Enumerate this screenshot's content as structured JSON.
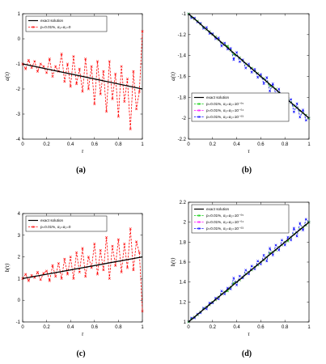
{
  "chart_data": [
    {
      "id": "a",
      "type": "line",
      "caption": "(a)",
      "xlabel": "τ",
      "ylabel": "a(τ)",
      "xlim": [
        0,
        1
      ],
      "ylim": [
        -4,
        1
      ],
      "xticks": [
        "0",
        "0.2",
        "0.4",
        "0.6",
        "0.8",
        "1"
      ],
      "yticks": [
        "1",
        "0",
        "-1",
        "-2",
        "-3",
        "-4"
      ],
      "legend_position": "top-left",
      "series": [
        {
          "name": "exact solution",
          "color": "#000000",
          "style": "solid",
          "x": [
            0,
            1
          ],
          "y": [
            -1.0,
            -2.0
          ]
        },
        {
          "name": "p=0.01%, α₁=α₂=0",
          "color": "#ff0000",
          "style": "dashed",
          "marker": "x",
          "x": [
            0,
            0.025,
            0.05,
            0.075,
            0.1,
            0.125,
            0.15,
            0.175,
            0.2,
            0.225,
            0.25,
            0.275,
            0.3,
            0.325,
            0.35,
            0.375,
            0.4,
            0.425,
            0.45,
            0.475,
            0.5,
            0.525,
            0.55,
            0.575,
            0.6,
            0.625,
            0.65,
            0.675,
            0.7,
            0.725,
            0.75,
            0.775,
            0.8,
            0.825,
            0.85,
            0.875,
            0.9,
            0.925,
            0.95,
            0.975,
            1.0
          ],
          "y": [
            -1.0,
            -1.2,
            -0.85,
            -1.15,
            -0.9,
            -1.3,
            -1.0,
            -1.1,
            -1.35,
            -0.8,
            -1.5,
            -1.1,
            -1.3,
            -0.6,
            -1.7,
            -1.0,
            -1.9,
            -0.7,
            -1.8,
            -1.2,
            -2.1,
            -0.8,
            -2.0,
            -1.1,
            -2.6,
            -0.9,
            -2.2,
            -1.3,
            -2.9,
            -0.9,
            -2.4,
            -1.4,
            -3.1,
            -1.1,
            -2.5,
            -1.6,
            -3.6,
            -1.3,
            -2.8,
            -2.1,
            0.3
          ]
        }
      ]
    },
    {
      "id": "b",
      "type": "line",
      "caption": "(b)",
      "xlabel": "τ",
      "ylabel": "a(τ)",
      "xlim": [
        0,
        1
      ],
      "ylim": [
        -2.2,
        -1
      ],
      "xticks": [
        "0",
        "0.2",
        "0.4",
        "0.6",
        "0.8",
        "1"
      ],
      "yticks": [
        "-1",
        "-1.2",
        "-1.4",
        "-1.6",
        "-1.8",
        "-2",
        "-2.2"
      ],
      "legend_position": "bottom-left",
      "series": [
        {
          "name": "exact solution",
          "color": "#000000",
          "style": "solid",
          "x": [
            0,
            1
          ],
          "y": [
            -1.0,
            -2.0
          ]
        },
        {
          "name": "p=0.01%, α₁=α₂=10⁻⁰⁵",
          "color": "#00cc00",
          "style": "dashed",
          "marker": "x",
          "x": [
            0,
            0.025,
            0.05,
            0.075,
            0.1,
            0.125,
            0.15,
            0.175,
            0.2,
            0.225,
            0.25,
            0.275,
            0.3,
            0.325,
            0.35,
            0.375,
            0.4,
            0.425,
            0.45,
            0.475,
            0.5,
            0.525,
            0.55,
            0.575,
            0.6,
            0.625,
            0.65,
            0.675,
            0.7,
            0.725,
            0.75,
            0.775,
            0.8,
            0.825,
            0.85,
            0.875,
            0.9,
            0.925,
            0.95,
            0.975,
            1.0
          ],
          "y": [
            -1.0,
            -1.03,
            -1.05,
            -1.07,
            -1.1,
            -1.13,
            -1.15,
            -1.17,
            -1.2,
            -1.22,
            -1.25,
            -1.28,
            -1.3,
            -1.31,
            -1.35,
            -1.39,
            -1.4,
            -1.42,
            -1.45,
            -1.48,
            -1.5,
            -1.52,
            -1.55,
            -1.57,
            -1.6,
            -1.62,
            -1.65,
            -1.69,
            -1.7,
            -1.72,
            -1.75,
            -1.77,
            -1.8,
            -1.81,
            -1.85,
            -1.88,
            -1.9,
            -1.93,
            -1.95,
            -1.97,
            -2.0
          ]
        },
        {
          "name": "p=0.01%, α₁=α₂=10⁻⁰⁴",
          "color": "#ff00ff",
          "style": "dashed",
          "marker": "x",
          "x": [
            0,
            0.025,
            0.05,
            0.075,
            0.1,
            0.125,
            0.15,
            0.175,
            0.2,
            0.225,
            0.25,
            0.275,
            0.3,
            0.325,
            0.35,
            0.375,
            0.4,
            0.425,
            0.45,
            0.475,
            0.5,
            0.525,
            0.55,
            0.575,
            0.6,
            0.625,
            0.65,
            0.675,
            0.7,
            0.725,
            0.75,
            0.775,
            0.8,
            0.825,
            0.85,
            0.875,
            0.9,
            0.925,
            0.95,
            0.975,
            1.0
          ],
          "y": [
            -1.0,
            -1.03,
            -1.05,
            -1.07,
            -1.1,
            -1.13,
            -1.15,
            -1.17,
            -1.2,
            -1.22,
            -1.25,
            -1.28,
            -1.3,
            -1.31,
            -1.35,
            -1.39,
            -1.4,
            -1.42,
            -1.45,
            -1.48,
            -1.5,
            -1.52,
            -1.55,
            -1.57,
            -1.6,
            -1.62,
            -1.65,
            -1.69,
            -1.7,
            -1.72,
            -1.75,
            -1.77,
            -1.8,
            -1.81,
            -1.85,
            -1.88,
            -1.9,
            -1.93,
            -1.95,
            -1.97,
            -2.0
          ]
        },
        {
          "name": "p=0.01%, α₁=α₂=10⁻⁰³",
          "color": "#0000ff",
          "style": "dashed",
          "marker": "x",
          "x": [
            0,
            0.025,
            0.05,
            0.075,
            0.1,
            0.125,
            0.15,
            0.175,
            0.2,
            0.225,
            0.25,
            0.275,
            0.3,
            0.325,
            0.35,
            0.375,
            0.4,
            0.425,
            0.45,
            0.475,
            0.5,
            0.525,
            0.55,
            0.575,
            0.6,
            0.625,
            0.65,
            0.675,
            0.7,
            0.725,
            0.75,
            0.775,
            0.8,
            0.825,
            0.85,
            0.875,
            0.9,
            0.925,
            0.95,
            0.975,
            1.0
          ],
          "y": [
            -1.0,
            -1.04,
            -1.04,
            -1.08,
            -1.09,
            -1.14,
            -1.13,
            -1.19,
            -1.19,
            -1.24,
            -1.23,
            -1.31,
            -1.28,
            -1.34,
            -1.33,
            -1.44,
            -1.37,
            -1.46,
            -1.44,
            -1.52,
            -1.48,
            -1.56,
            -1.53,
            -1.61,
            -1.58,
            -1.67,
            -1.61,
            -1.74,
            -1.67,
            -1.77,
            -1.72,
            -1.82,
            -1.77,
            -1.85,
            -1.82,
            -1.94,
            -1.86,
            -1.99,
            -1.92,
            -2.02,
            -2.0
          ]
        }
      ]
    },
    {
      "id": "c",
      "type": "line",
      "caption": "(c)",
      "xlabel": "τ",
      "ylabel": "b(τ)",
      "xlim": [
        0,
        1
      ],
      "ylim": [
        -1,
        4
      ],
      "xticks": [
        "0",
        "0.2",
        "0.4",
        "0.6",
        "0.8",
        "1"
      ],
      "yticks": [
        "4",
        "3",
        "2",
        "1",
        "0",
        "-1"
      ],
      "legend_position": "top-left",
      "series": [
        {
          "name": "exact solution",
          "color": "#000000",
          "style": "solid",
          "x": [
            0,
            1
          ],
          "y": [
            1.0,
            2.0
          ]
        },
        {
          "name": "p=0.01%, α₁=α₂=0",
          "color": "#ff0000",
          "style": "dashed",
          "marker": "x",
          "x": [
            0,
            0.025,
            0.05,
            0.075,
            0.1,
            0.125,
            0.15,
            0.175,
            0.2,
            0.225,
            0.25,
            0.275,
            0.3,
            0.325,
            0.35,
            0.375,
            0.4,
            0.425,
            0.45,
            0.475,
            0.5,
            0.525,
            0.55,
            0.575,
            0.6,
            0.625,
            0.65,
            0.675,
            0.7,
            0.725,
            0.75,
            0.775,
            0.8,
            0.825,
            0.85,
            0.875,
            0.9,
            0.925,
            0.95,
            0.975,
            1.0
          ],
          "y": [
            1.0,
            1.2,
            0.9,
            1.15,
            1.05,
            1.3,
            0.95,
            1.25,
            1.35,
            0.9,
            1.6,
            1.1,
            1.7,
            1.0,
            1.9,
            1.2,
            2.0,
            1.0,
            2.2,
            1.3,
            2.4,
            1.1,
            2.0,
            1.5,
            2.6,
            1.2,
            2.3,
            1.4,
            2.9,
            1.0,
            2.5,
            1.6,
            2.8,
            1.3,
            2.6,
            1.5,
            3.3,
            1.4,
            2.7,
            2.2,
            -0.5
          ]
        }
      ]
    },
    {
      "id": "d",
      "type": "line",
      "caption": "(d)",
      "xlabel": "τ",
      "ylabel": "b(τ)",
      "xlim": [
        0,
        1
      ],
      "ylim": [
        1,
        2.2
      ],
      "xticks": [
        "0",
        "0.2",
        "0.4",
        "0.6",
        "0.8",
        "1"
      ],
      "yticks": [
        "2.2",
        "2",
        "1.8",
        "1.6",
        "1.4",
        "1.2",
        "1"
      ],
      "legend_position": "top-left",
      "series": [
        {
          "name": "exact solution",
          "color": "#000000",
          "style": "solid",
          "x": [
            0,
            1
          ],
          "y": [
            1.0,
            2.0
          ]
        },
        {
          "name": "p=0.01%, α₁=α₂=10⁻⁰⁵",
          "color": "#00cc00",
          "style": "dashed",
          "marker": "x",
          "x": [
            0,
            0.025,
            0.05,
            0.075,
            0.1,
            0.125,
            0.15,
            0.175,
            0.2,
            0.225,
            0.25,
            0.275,
            0.3,
            0.325,
            0.35,
            0.375,
            0.4,
            0.425,
            0.45,
            0.475,
            0.5,
            0.525,
            0.55,
            0.575,
            0.6,
            0.625,
            0.65,
            0.675,
            0.7,
            0.725,
            0.75,
            0.775,
            0.8,
            0.825,
            0.85,
            0.875,
            0.9,
            0.925,
            0.95,
            0.975,
            1.0
          ],
          "y": [
            1.0,
            1.03,
            1.05,
            1.07,
            1.1,
            1.13,
            1.15,
            1.17,
            1.2,
            1.22,
            1.25,
            1.28,
            1.3,
            1.31,
            1.35,
            1.39,
            1.4,
            1.42,
            1.45,
            1.48,
            1.5,
            1.52,
            1.55,
            1.57,
            1.6,
            1.62,
            1.65,
            1.69,
            1.7,
            1.72,
            1.75,
            1.77,
            1.8,
            1.81,
            1.85,
            1.88,
            1.9,
            1.93,
            1.95,
            1.97,
            2.0
          ]
        },
        {
          "name": "p=0.01%, α₁=α₂=10⁻⁰⁴",
          "color": "#ff00ff",
          "style": "dashed",
          "marker": "x",
          "x": [
            0,
            0.025,
            0.05,
            0.075,
            0.1,
            0.125,
            0.15,
            0.175,
            0.2,
            0.225,
            0.25,
            0.275,
            0.3,
            0.325,
            0.35,
            0.375,
            0.4,
            0.425,
            0.45,
            0.475,
            0.5,
            0.525,
            0.55,
            0.575,
            0.6,
            0.625,
            0.65,
            0.675,
            0.7,
            0.725,
            0.75,
            0.775,
            0.8,
            0.825,
            0.85,
            0.875,
            0.9,
            0.925,
            0.95,
            0.975,
            1.0
          ],
          "y": [
            1.0,
            1.03,
            1.05,
            1.07,
            1.1,
            1.13,
            1.15,
            1.17,
            1.2,
            1.22,
            1.25,
            1.28,
            1.3,
            1.31,
            1.35,
            1.39,
            1.4,
            1.42,
            1.45,
            1.48,
            1.5,
            1.52,
            1.55,
            1.57,
            1.6,
            1.62,
            1.65,
            1.69,
            1.7,
            1.72,
            1.75,
            1.77,
            1.8,
            1.81,
            1.85,
            1.88,
            1.9,
            1.93,
            1.95,
            1.97,
            2.0
          ]
        },
        {
          "name": "p=0.01%, α₁=α₂=10⁻⁰³",
          "color": "#0000ff",
          "style": "dashed",
          "marker": "x",
          "x": [
            0,
            0.025,
            0.05,
            0.075,
            0.1,
            0.125,
            0.15,
            0.175,
            0.2,
            0.225,
            0.25,
            0.275,
            0.3,
            0.325,
            0.35,
            0.375,
            0.4,
            0.425,
            0.45,
            0.475,
            0.5,
            0.525,
            0.55,
            0.575,
            0.6,
            0.625,
            0.65,
            0.675,
            0.7,
            0.725,
            0.75,
            0.775,
            0.8,
            0.825,
            0.85,
            0.875,
            0.9,
            0.925,
            0.95,
            0.975,
            1.0
          ],
          "y": [
            1.0,
            1.04,
            1.04,
            1.08,
            1.09,
            1.14,
            1.13,
            1.19,
            1.19,
            1.24,
            1.23,
            1.31,
            1.28,
            1.34,
            1.33,
            1.44,
            1.37,
            1.46,
            1.44,
            1.52,
            1.48,
            1.56,
            1.53,
            1.61,
            1.58,
            1.67,
            1.61,
            1.74,
            1.67,
            1.77,
            1.72,
            1.82,
            1.77,
            1.85,
            1.82,
            1.94,
            1.86,
            1.99,
            1.92,
            2.03,
            2.0
          ]
        }
      ]
    }
  ]
}
